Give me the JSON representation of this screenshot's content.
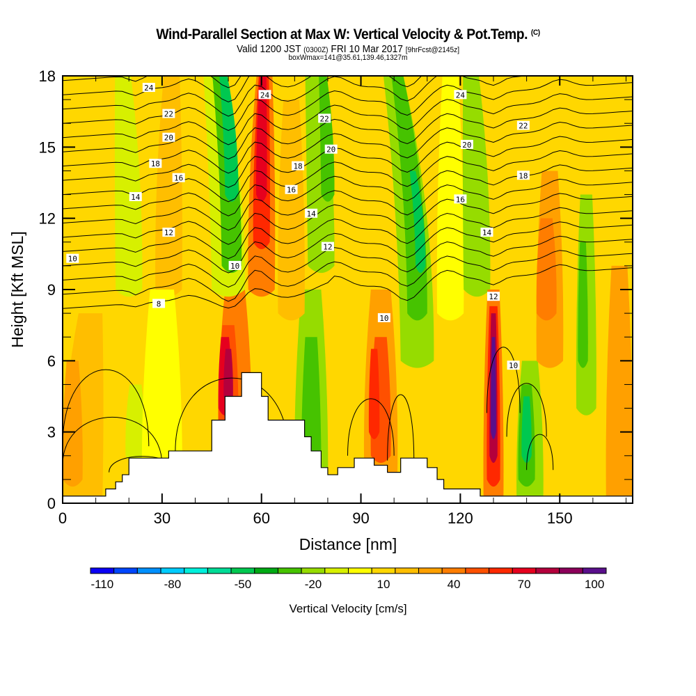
{
  "title": {
    "main": "Wind-Parallel Section at Max W: Vertical Velocity & Pot.Temp.",
    "mark": "(C)",
    "valid_prefix": "Valid 1200 JST",
    "valid_utc": "(0300Z)",
    "valid_date": "FRI 10 Mar 2017",
    "forecast": "[9hrFcst@2145z]",
    "box": "boxWmax=141@35.61,139.46,1327m"
  },
  "chart_data": {
    "type": "heatmap",
    "title": "Wind-Parallel Section at Max W: Vertical Velocity & Pot.Temp.",
    "xlabel": "Distance [nm]",
    "ylabel": "Height [Kft MSL]",
    "xlim": [
      0,
      172
    ],
    "ylim": [
      0,
      18
    ],
    "xticks": [
      0,
      30,
      60,
      90,
      120,
      150
    ],
    "xtick_labels": [
      "0",
      "30",
      "60",
      "90",
      "120",
      "150"
    ],
    "yticks": [
      0,
      3,
      6,
      9,
      12,
      15,
      18
    ],
    "ytick_labels": [
      "0",
      "3",
      "6",
      "9",
      "12",
      "15",
      "18"
    ],
    "colorbar": {
      "label": "Vertical Velocity [cm/s]",
      "tick_labels": [
        "-110",
        "-80",
        "-50",
        "-20",
        "10",
        "40",
        "70",
        "100"
      ],
      "tick_values": [
        -110,
        -80,
        -50,
        -20,
        10,
        40,
        70,
        100
      ],
      "colors": [
        "#0a00f5",
        "#0046ff",
        "#0090ff",
        "#00ccff",
        "#00f0dc",
        "#00dc96",
        "#00c850",
        "#00aa14",
        "#46c300",
        "#96dc00",
        "#d7f000",
        "#ffff00",
        "#ffd700",
        "#ffbe00",
        "#ffa000",
        "#ff7d00",
        "#ff5000",
        "#ff2800",
        "#e6001e",
        "#b4003c",
        "#8c005a",
        "#5a0f8c"
      ]
    },
    "contour_field": "Potential Temperature",
    "contour_labels": [
      "24",
      "22",
      "20",
      "18",
      "16",
      "14",
      "12",
      "10",
      "8",
      "24",
      "10",
      "22",
      "20",
      "18",
      "16",
      "14",
      "12",
      "10",
      "24",
      "22",
      "20",
      "18",
      "16",
      "14",
      "12",
      "10"
    ],
    "terrain_profile": {
      "distance_nm": [
        0,
        12,
        13,
        16,
        18,
        20,
        23,
        32,
        42,
        45,
        47,
        49,
        54,
        58,
        60,
        62,
        71,
        73,
        75,
        78,
        80,
        83,
        88,
        90,
        94,
        98,
        102,
        106,
        110,
        113,
        115,
        125,
        126,
        132,
        172
      ],
      "height_kft": [
        0.3,
        0.3,
        0.6,
        0.9,
        1.2,
        1.9,
        1.9,
        2.2,
        2.2,
        3.5,
        3.5,
        4.5,
        5.5,
        5.5,
        4.5,
        3.5,
        3.5,
        2.8,
        2.2,
        1.5,
        1.2,
        1.5,
        1.9,
        1.9,
        1.6,
        1.3,
        1.9,
        1.9,
        1.5,
        1.0,
        0.6,
        0.6,
        0.3,
        0.3,
        0.3
      ]
    }
  }
}
